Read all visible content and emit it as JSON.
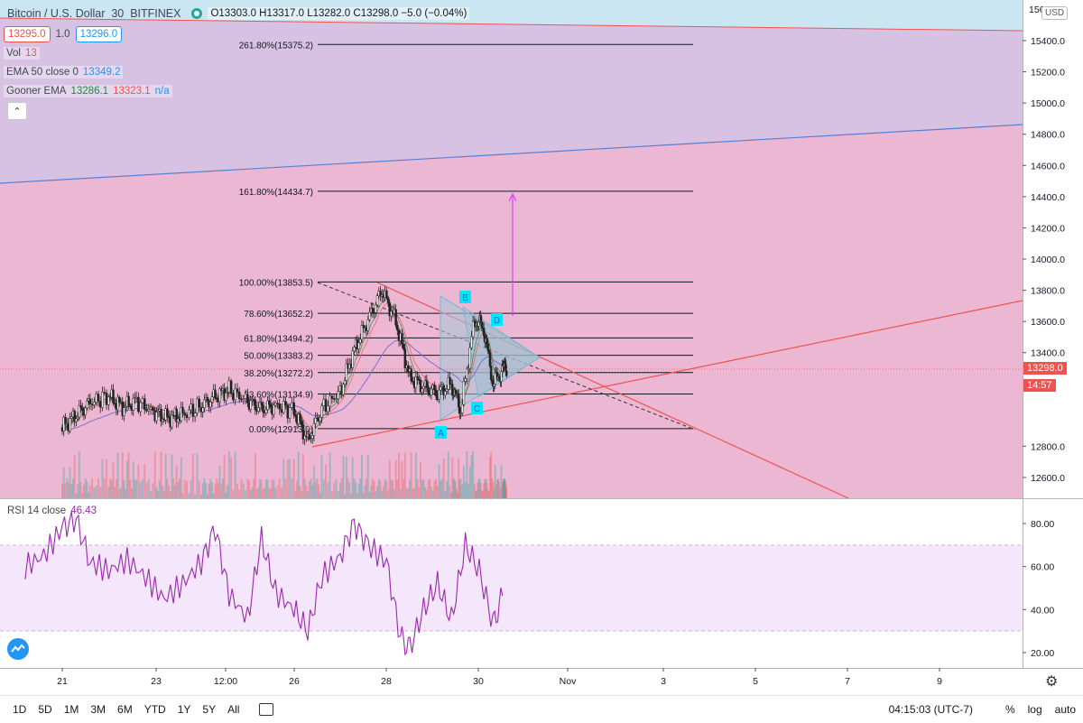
{
  "header": {
    "symbol": "Bitcoin / U.S. Dollar",
    "interval": "30",
    "exchange": "BITFINEX",
    "ohlc": "O13303.0 H13317.0 L13282.0 C13298.0 −5.0 (−0.04%)",
    "bid": "13295.0",
    "spread": "1.0",
    "ask": "13296.0",
    "currency": "USD"
  },
  "indicators": {
    "vol": {
      "name": "Vol",
      "value": "13"
    },
    "ema50": {
      "name": "EMA 50 close 0",
      "value": "13349.2"
    },
    "gooner": {
      "name": "Gooner EMA",
      "v1": "13286.1",
      "v2": "13323.1",
      "v3": "n/a"
    },
    "rsi": {
      "name": "RSI 14 close",
      "value": "46.43"
    }
  },
  "price_axis": {
    "top_label": "156",
    "labels": [
      "15400.0",
      "15200.0",
      "15000.0",
      "14800.0",
      "14600.0",
      "14400.0",
      "14200.0",
      "14000.0",
      "13800.0",
      "13600.0",
      "13400.0",
      "12800.0",
      "12600.0"
    ],
    "partial_13200": "1",
    "last_price": "13298.0",
    "countdown": "14:57"
  },
  "rsi_axis": {
    "labels": [
      "80.00",
      "60.00",
      "40.00",
      "20.00"
    ]
  },
  "time_axis": [
    "21",
    "23",
    "12:00",
    "26",
    "28",
    "30",
    "Nov",
    "3",
    "5",
    "7",
    "9"
  ],
  "fib_levels": [
    {
      "label": "261.80%(15375.2)",
      "price": 15375.2
    },
    {
      "label": "161.80%(14434.7)",
      "price": 14434.7
    },
    {
      "label": "100.00%(13853.5)",
      "price": 13853.5
    },
    {
      "label": "78.60%(13652.2)",
      "price": 13652.2
    },
    {
      "label": "61.80%(13494.2)",
      "price": 13494.2
    },
    {
      "label": "50.00%(13383.2)",
      "price": 13383.2
    },
    {
      "label": "38.20%(13272.2)",
      "price": 13272.2
    },
    {
      "label": "23.60%(13134.9)",
      "price": 13134.9
    },
    {
      "label": "0.00%(12913.0)",
      "price": 12913.0
    }
  ],
  "pattern_points": [
    "A",
    "B",
    "C",
    "D"
  ],
  "timeframes": [
    "1D",
    "5D",
    "1M",
    "3M",
    "6M",
    "YTD",
    "1Y",
    "5Y",
    "All"
  ],
  "clock": "04:15:03 (UTC-7)",
  "options": {
    "percent": "%",
    "log": "log",
    "auto": "auto"
  },
  "colors": {
    "up": "#26a69a",
    "down": "#ef5350",
    "ema": "#2196f3",
    "rsi": "#9c27b0",
    "fib": "#131722",
    "channel_red": "#ef5350",
    "channel_blue": "#5b7fce"
  },
  "chart_data": {
    "type": "candlestick",
    "symbol": "Bitcoin / U.S. Dollar",
    "interval": "30",
    "fib_retracement": [
      15375.2,
      14434.7,
      13853.5,
      13652.2,
      13494.2,
      13383.2,
      13272.2,
      13134.9,
      12913.0
    ],
    "last_price": 13298.0,
    "price_range": [
      12500,
      15600
    ],
    "rsi_range": [
      10,
      90
    ],
    "rsi_last": 46.43,
    "rsi_bands": [
      30,
      70
    ],
    "ohlc_last": {
      "open": 13303.0,
      "high": 13317.0,
      "low": 13282.0,
      "close": 13298.0,
      "change": -5.0,
      "change_pct": -0.04
    },
    "price_trace": [
      [
        21,
        12920
      ],
      [
        21.3,
        13000
      ],
      [
        21.6,
        13080
      ],
      [
        22,
        13120
      ],
      [
        22.3,
        13050
      ],
      [
        22.6,
        13090
      ],
      [
        23,
        13010
      ],
      [
        23.3,
        12980
      ],
      [
        23.6,
        13000
      ],
      [
        24,
        13060
      ],
      [
        24.3,
        13120
      ],
      [
        24.6,
        13160
      ],
      [
        25,
        13090
      ],
      [
        25.3,
        13040
      ],
      [
        25.6,
        13060
      ],
      [
        26,
        13030
      ],
      [
        26.3,
        12830
      ],
      [
        26.6,
        13040
      ],
      [
        27,
        13150
      ],
      [
        27.3,
        13420
      ],
      [
        27.6,
        13610
      ],
      [
        27.9,
        13800
      ],
      [
        28.2,
        13600
      ],
      [
        28.5,
        13240
      ],
      [
        28.8,
        13180
      ],
      [
        29.1,
        13140
      ],
      [
        29.4,
        13200
      ],
      [
        29.6,
        13030
      ],
      [
        29.9,
        13620
      ],
      [
        30.1,
        13550
      ],
      [
        30.3,
        13200
      ],
      [
        30.5,
        13290
      ],
      [
        30.6,
        13298
      ]
    ],
    "rsi_trace": [
      [
        20.2,
        60
      ],
      [
        20.6,
        65
      ],
      [
        21,
        78
      ],
      [
        21.3,
        82
      ],
      [
        21.6,
        62
      ],
      [
        22,
        58
      ],
      [
        22.4,
        63
      ],
      [
        22.8,
        55
      ],
      [
        23.2,
        45
      ],
      [
        23.6,
        52
      ],
      [
        24,
        62
      ],
      [
        24.3,
        78
      ],
      [
        24.6,
        47
      ],
      [
        25,
        36
      ],
      [
        25.3,
        73
      ],
      [
        25.6,
        48
      ],
      [
        26,
        40
      ],
      [
        26.3,
        30
      ],
      [
        26.6,
        55
      ],
      [
        27,
        65
      ],
      [
        27.3,
        80
      ],
      [
        27.6,
        70
      ],
      [
        28,
        62
      ],
      [
        28.3,
        27
      ],
      [
        28.5,
        22
      ],
      [
        28.8,
        40
      ],
      [
        29.1,
        52
      ],
      [
        29.4,
        35
      ],
      [
        29.7,
        70
      ],
      [
        30,
        58
      ],
      [
        30.3,
        33
      ],
      [
        30.5,
        46.43
      ]
    ]
  }
}
